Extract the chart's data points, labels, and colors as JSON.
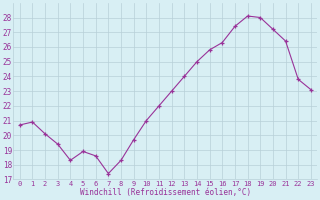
{
  "x": [
    0,
    1,
    2,
    3,
    4,
    5,
    6,
    7,
    8,
    9,
    10,
    11,
    12,
    13,
    14,
    15,
    16,
    17,
    18,
    19,
    20,
    21,
    22,
    23
  ],
  "y": [
    20.7,
    20.9,
    20.1,
    19.4,
    18.3,
    18.9,
    18.6,
    17.4,
    18.3,
    19.7,
    21.0,
    22.0,
    23.0,
    24.0,
    25.0,
    25.8,
    26.3,
    27.4,
    28.1,
    28.0,
    27.2,
    26.4,
    23.8,
    23.1
  ],
  "xlabel": "Windchill (Refroidissement éolien,°C)",
  "line_color": "#993399",
  "bg_color": "#d8eff4",
  "grid_color": "#b8d0d8",
  "ylim": [
    17,
    29
  ],
  "yticks": [
    17,
    18,
    19,
    20,
    21,
    22,
    23,
    24,
    25,
    26,
    27,
    28
  ],
  "xlim": [
    -0.5,
    23.5
  ],
  "xticks": [
    0,
    1,
    2,
    3,
    4,
    5,
    6,
    7,
    8,
    9,
    10,
    11,
    12,
    13,
    14,
    15,
    16,
    17,
    18,
    19,
    20,
    21,
    22,
    23
  ]
}
